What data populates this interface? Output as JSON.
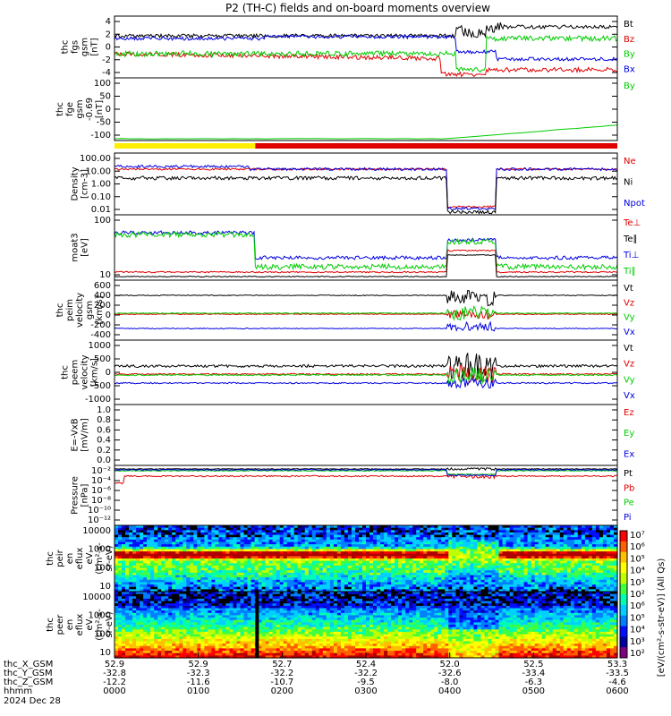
{
  "title": "P2 (TH-C) fields and on-board moments overview",
  "colors": {
    "black": "#000000",
    "red": "#e00000",
    "green": "#00cc00",
    "blue": "#0000e0",
    "yellow": "#ffee00"
  },
  "chart_data": [
    {
      "type": "line",
      "id": "p1",
      "ylabel": [
        "thc",
        "fgs",
        "gsm",
        "[nT]"
      ],
      "yticks": [
        "4",
        "2",
        "0",
        "-2",
        "-4"
      ],
      "ylim": [
        -4.5,
        5.5
      ],
      "series": [
        {
          "name": "Bt",
          "color": "#000000"
        },
        {
          "name": "Bz",
          "color": "#e00000"
        },
        {
          "name": "By",
          "color": "#00cc00"
        },
        {
          "name": "Bx",
          "color": "#0000e0"
        }
      ]
    },
    {
      "type": "line",
      "id": "p2",
      "ylabel": [
        "thc",
        "fge",
        "gsm",
        "-0.69",
        "[nT]"
      ],
      "yticks": [
        "100",
        "50",
        "0",
        "-50",
        "-100"
      ],
      "ylim": [
        -125,
        105
      ],
      "series": [
        {
          "name": "By",
          "color": "#00cc00"
        }
      ]
    },
    {
      "type": "line",
      "id": "p3",
      "ylabel": [
        "Density",
        "[cm-3]"
      ],
      "yticks": [
        "100.00",
        "10.00",
        "1.00",
        "0.10",
        "0.01"
      ],
      "series": [
        {
          "name": "Ne",
          "color": "#e00000"
        },
        {
          "name": "Ni",
          "color": "#000000"
        },
        {
          "name": "Npot",
          "color": "#0000e0"
        }
      ]
    },
    {
      "type": "line",
      "id": "p4",
      "ylabel": [
        "moat3",
        "[eV]"
      ],
      "yticks": [
        "100",
        "10"
      ],
      "series": [
        {
          "name": "Te⊥",
          "color": "#e00000"
        },
        {
          "name": "Te∥",
          "color": "#000000"
        },
        {
          "name": "Ti⊥",
          "color": "#0000e0"
        },
        {
          "name": "Ti∥",
          "color": "#00cc00"
        }
      ]
    },
    {
      "type": "line",
      "id": "p5",
      "ylabel": [
        "thc",
        "peim",
        "velocity",
        "gsm",
        "[km/s]"
      ],
      "yticks": [
        "600",
        "400",
        "200",
        "0",
        "-200",
        "-400"
      ],
      "ylim": [
        -430,
        630
      ],
      "series": [
        {
          "name": "Vt",
          "color": "#000000"
        },
        {
          "name": "Vz",
          "color": "#e00000"
        },
        {
          "name": "Vy",
          "color": "#00cc00"
        },
        {
          "name": "Vx",
          "color": "#0000e0"
        }
      ]
    },
    {
      "type": "line",
      "id": "p6",
      "ylabel": [
        "thc",
        "peem",
        "velocity",
        "[km/s]"
      ],
      "yticks": [
        "1000",
        "500",
        "0",
        "-500",
        "-1000"
      ],
      "ylim": [
        -1350,
        1500
      ],
      "series": [
        {
          "name": "Vt",
          "color": "#000000"
        },
        {
          "name": "Vz",
          "color": "#e00000"
        },
        {
          "name": "Vy",
          "color": "#00cc00"
        },
        {
          "name": "Vx",
          "color": "#0000e0"
        }
      ]
    },
    {
      "type": "line",
      "id": "p7",
      "ylabel": [
        "E=-VxB",
        "[mV/m]"
      ],
      "yticks": [
        "1.0",
        "0.8",
        "0.6",
        "0.4",
        "0.2",
        "0.0"
      ],
      "ylim": [
        0,
        1
      ],
      "series": [
        {
          "name": "Ez",
          "color": "#e00000"
        },
        {
          "name": "Ey",
          "color": "#00cc00"
        },
        {
          "name": "Ex",
          "color": "#0000e0"
        }
      ]
    },
    {
      "type": "line",
      "id": "p8",
      "ylabel": [
        "Pressure",
        "[nPa]"
      ],
      "yticks": [
        "10⁻²",
        "10⁻⁴",
        "10⁻⁶",
        "10⁻⁸",
        "10⁻¹⁰",
        "10⁻¹²"
      ],
      "series": [
        {
          "name": "Pt",
          "color": "#000000"
        },
        {
          "name": "Pb",
          "color": "#e00000"
        },
        {
          "name": "Pe",
          "color": "#00cc00"
        },
        {
          "name": "Pi",
          "color": "#0000e0"
        }
      ]
    },
    {
      "type": "heatmap",
      "id": "p9",
      "ylabel": [
        "thc",
        "peir",
        "en",
        "eflux",
        "eV",
        "(cm²-s-",
        "sr-eV)"
      ],
      "yticks": [
        "10000",
        "1000",
        "100",
        "10"
      ]
    },
    {
      "type": "heatmap",
      "id": "p10",
      "ylabel": [
        "thc",
        "peer",
        "en",
        "eflux",
        "eV",
        "(cm²-s-",
        "sr-eV)"
      ],
      "yticks": [
        "10000",
        "1000",
        "100",
        "10"
      ]
    }
  ],
  "colorbar": {
    "ticks": [
      "10⁷",
      "10⁶",
      "10⁵",
      "10⁴",
      "10³",
      "10²",
      "10⁶",
      "10⁵",
      "10⁴",
      "10³",
      "10²"
    ],
    "label": "[eV/(cm²-s-str-eV)] (All Qs)"
  },
  "xaxis": {
    "rows": [
      {
        "name": "thc_X_GSM",
        "values": [
          "52.9",
          "52.9",
          "52.7",
          "52.4",
          "52.0",
          "52.5",
          "53.3"
        ]
      },
      {
        "name": "thc_Y_GSM",
        "values": [
          "-32.8",
          "-32.3",
          "-32.2",
          "-32.2",
          "-32.6",
          "-33.4",
          "-33.5"
        ]
      },
      {
        "name": "thc_Z_GSM",
        "values": [
          "-12.2",
          "-11.6",
          "-10.7",
          "-9.5",
          "-8.0",
          "-6.3",
          "-4.6"
        ]
      },
      {
        "name": "hhmm",
        "values": [
          "0000",
          "0100",
          "0200",
          "0300",
          "0400",
          "0500",
          "0600"
        ]
      }
    ],
    "date": "2024 Dec 28"
  }
}
